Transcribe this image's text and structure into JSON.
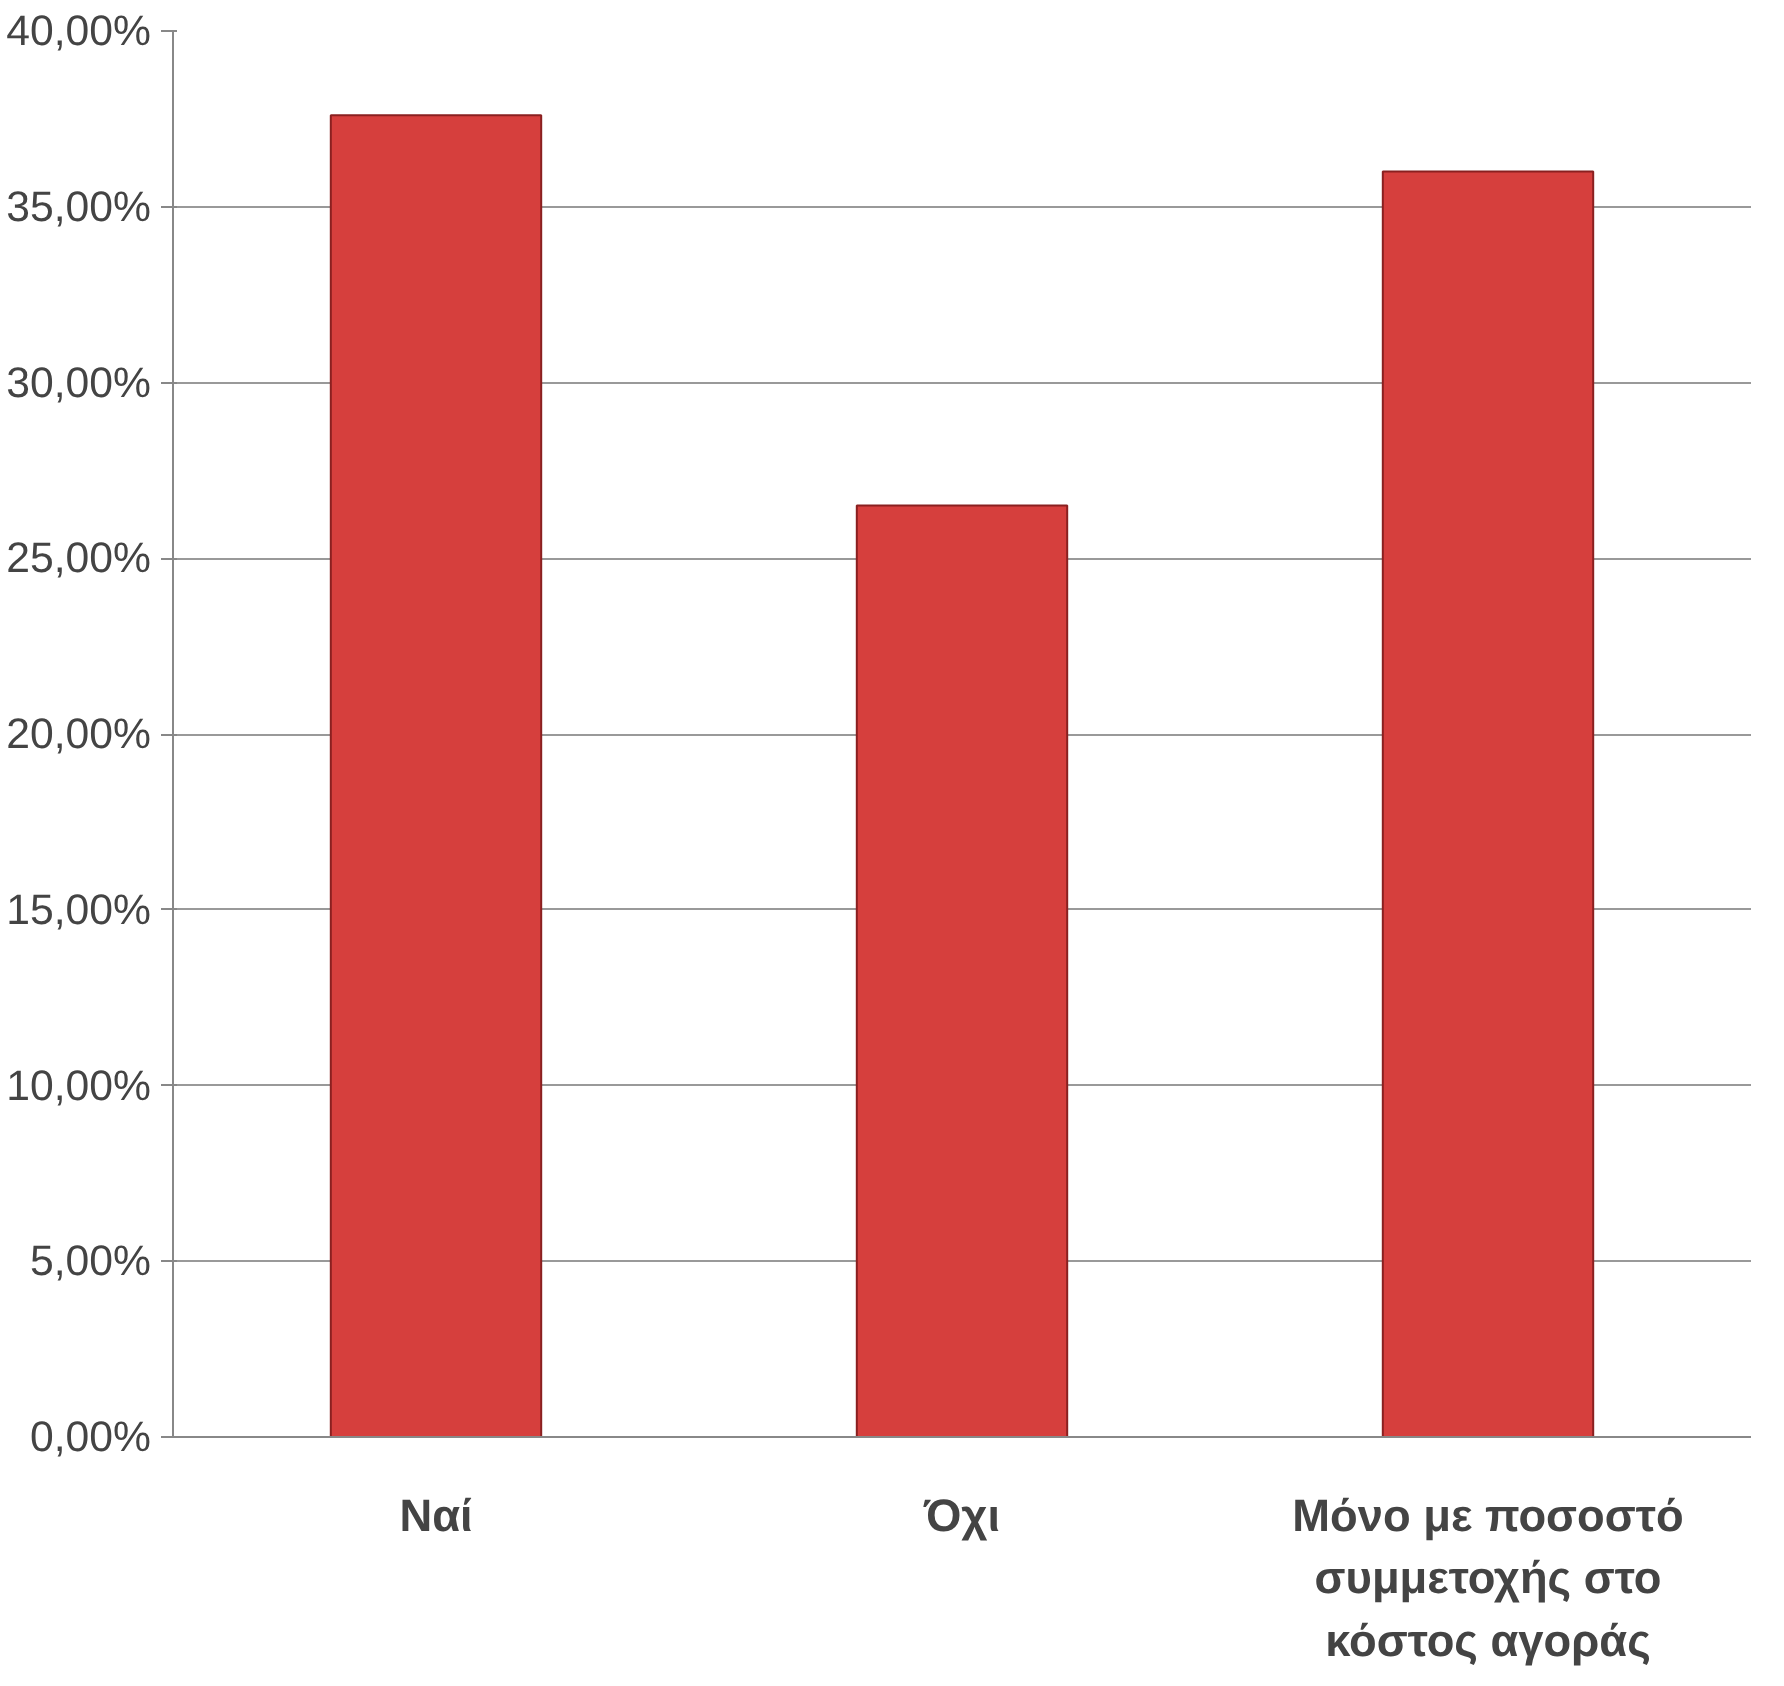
{
  "chart_data": {
    "type": "bar",
    "categories": [
      "Ναί",
      "Όχι",
      "Μόνο με ποσοστό συμμετοχής στο κόστος αγοράς"
    ],
    "values": [
      37.6,
      26.5,
      36.0
    ],
    "color": "#d63f3d",
    "ylim": [
      0,
      40
    ],
    "yticks": [
      {
        "value": 0,
        "label": "0,00%"
      },
      {
        "value": 5,
        "label": "5,00%"
      },
      {
        "value": 10,
        "label": "10,00%"
      },
      {
        "value": 15,
        "label": "15,00%"
      },
      {
        "value": 20,
        "label": "20,00%"
      },
      {
        "value": 25,
        "label": "25,00%"
      },
      {
        "value": 30,
        "label": "30,00%"
      },
      {
        "value": 35,
        "label": "35,00%"
      },
      {
        "value": 40,
        "label": "40,00%"
      }
    ],
    "grid": "y"
  }
}
